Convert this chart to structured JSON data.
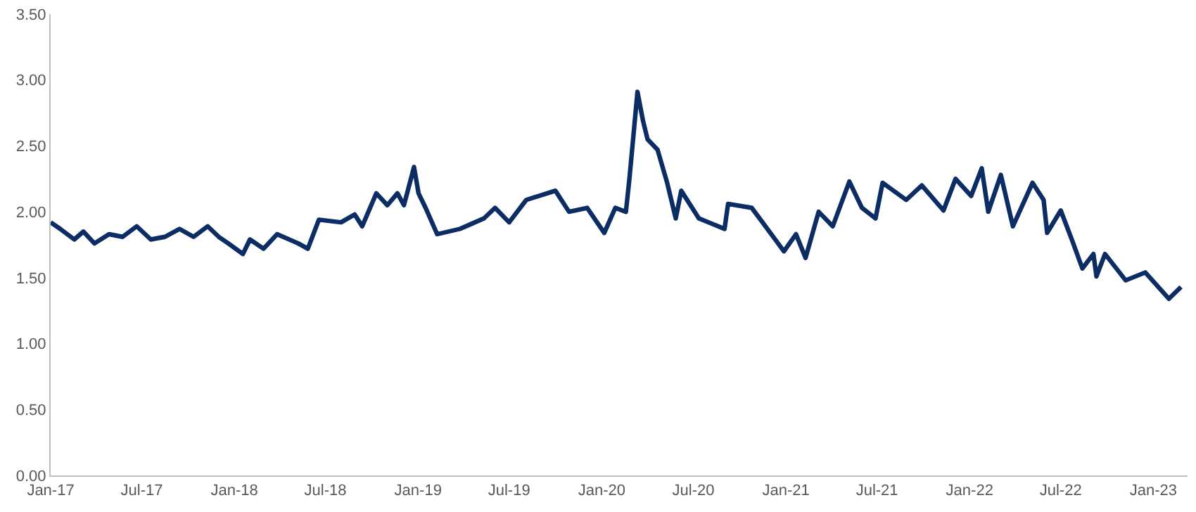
{
  "chart_data": {
    "type": "line",
    "legend": false,
    "marker": "none",
    "line_style": "solid",
    "xlim": [
      "2017-01-01",
      "2023-03-10"
    ],
    "ylim": [
      0,
      3.5
    ],
    "xticks": [
      {
        "value": "2017-01-01",
        "label": "Jan-17"
      },
      {
        "value": "2017-07-01",
        "label": "Jul-17"
      },
      {
        "value": "2018-01-01",
        "label": "Jan-18"
      },
      {
        "value": "2018-07-01",
        "label": "Jul-18"
      },
      {
        "value": "2019-01-01",
        "label": "Jan-19"
      },
      {
        "value": "2019-07-01",
        "label": "Jul-19"
      },
      {
        "value": "2020-01-01",
        "label": "Jan-20"
      },
      {
        "value": "2020-07-01",
        "label": "Jul-20"
      },
      {
        "value": "2021-01-01",
        "label": "Jan-21"
      },
      {
        "value": "2021-07-01",
        "label": "Jul-21"
      },
      {
        "value": "2022-01-01",
        "label": "Jan-22"
      },
      {
        "value": "2022-07-01",
        "label": "Jul-22"
      },
      {
        "value": "2023-01-01",
        "label": "Jan-23"
      }
    ],
    "yticks": [
      {
        "value": 0,
        "label": "0.00"
      },
      {
        "value": 0.5,
        "label": "0.50"
      },
      {
        "value": 1,
        "label": "1.00"
      },
      {
        "value": 1.5,
        "label": "1.50"
      },
      {
        "value": 2,
        "label": "2.00"
      },
      {
        "value": 2.5,
        "label": "2.50"
      },
      {
        "value": 3,
        "label": "3.00"
      },
      {
        "value": 3.5,
        "label": "3.50"
      }
    ],
    "x": [
      "2017-01-01",
      "2017-01-20",
      "2017-02-17",
      "2017-03-07",
      "2017-03-29",
      "2017-04-27",
      "2017-05-24",
      "2017-06-21",
      "2017-07-19",
      "2017-08-16",
      "2017-09-14",
      "2017-10-12",
      "2017-11-09",
      "2017-12-01",
      "2017-12-20",
      "2018-01-18",
      "2018-02-01",
      "2018-02-28",
      "2018-03-27",
      "2018-05-08",
      "2018-05-27",
      "2018-06-18",
      "2018-08-01",
      "2018-08-28",
      "2018-09-12",
      "2018-10-10",
      "2018-11-01",
      "2018-11-21",
      "2018-12-04",
      "2018-12-24",
      "2019-01-02",
      "2019-01-16",
      "2019-02-08",
      "2019-03-25",
      "2019-05-12",
      "2019-06-03",
      "2019-07-01",
      "2019-08-04",
      "2019-10-01",
      "2019-10-28",
      "2019-12-03",
      "2020-01-06",
      "2020-01-28",
      "2020-02-18",
      "2020-02-25",
      "2020-03-12",
      "2020-03-23",
      "2020-04-01",
      "2020-04-21",
      "2020-05-10",
      "2020-05-27",
      "2020-06-07",
      "2020-07-12",
      "2020-09-01",
      "2020-09-08",
      "2020-10-25",
      "2020-12-01",
      "2020-12-28",
      "2021-01-21",
      "2021-02-09",
      "2021-03-07",
      "2021-04-04",
      "2021-05-07",
      "2021-06-01",
      "2021-06-28",
      "2021-07-12",
      "2021-08-28",
      "2021-09-28",
      "2021-11-10",
      "2021-12-04",
      "2022-01-04",
      "2022-01-25",
      "2022-02-07",
      "2022-03-04",
      "2022-03-28",
      "2022-05-06",
      "2022-05-28",
      "2022-06-04",
      "2022-07-01",
      "2022-07-24",
      "2022-08-13",
      "2022-09-04",
      "2022-09-10",
      "2022-09-27",
      "2022-11-07",
      "2022-12-16",
      "2023-02-01",
      "2023-02-25"
    ],
    "series": [
      {
        "color": "#0b2d63",
        "values": [
          1.92,
          1.87,
          1.79,
          1.85,
          1.76,
          1.83,
          1.81,
          1.89,
          1.79,
          1.81,
          1.87,
          1.81,
          1.89,
          1.81,
          1.76,
          1.68,
          1.79,
          1.72,
          1.83,
          1.76,
          1.72,
          1.94,
          1.92,
          1.98,
          1.89,
          2.14,
          2.05,
          2.14,
          2.05,
          2.34,
          2.14,
          2.03,
          1.83,
          1.87,
          1.95,
          2.03,
          1.92,
          2.09,
          2.16,
          2.0,
          2.03,
          1.84,
          2.03,
          2.0,
          2.25,
          2.91,
          2.69,
          2.55,
          2.47,
          2.22,
          1.95,
          2.16,
          1.95,
          1.87,
          2.06,
          2.03,
          1.84,
          1.7,
          1.83,
          1.65,
          2.0,
          1.89,
          2.23,
          2.03,
          1.95,
          2.22,
          2.09,
          2.2,
          2.01,
          2.25,
          2.12,
          2.33,
          2.0,
          2.28,
          1.89,
          2.22,
          2.09,
          1.84,
          2.01,
          1.78,
          1.57,
          1.68,
          1.51,
          1.68,
          1.48,
          1.54,
          1.34,
          1.43
        ]
      }
    ]
  }
}
